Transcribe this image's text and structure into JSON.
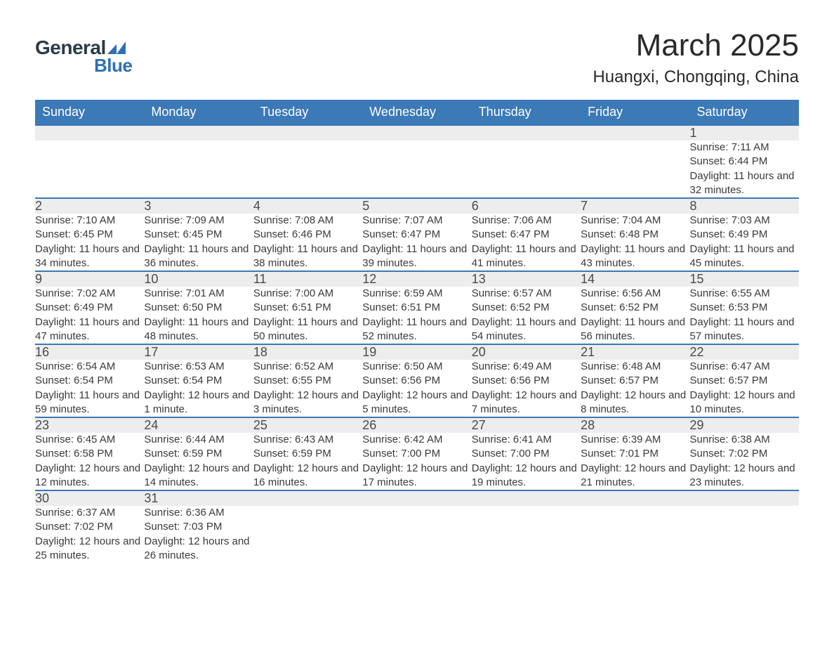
{
  "brand": {
    "word1": "General",
    "word2": "Blue",
    "word1_color": "#2b3a4a",
    "word2_color": "#2f6fb3",
    "flag_color": "#2f6fb3"
  },
  "title": {
    "month": "March 2025",
    "location": "Huangxi, Chongqing, China"
  },
  "colors": {
    "header_bg": "#3b79b7",
    "header_text": "#ffffff",
    "daynum_bg": "#ededed",
    "row_border": "#3b79b7",
    "body_text": "#3a3a3a"
  },
  "weekdays": [
    "Sunday",
    "Monday",
    "Tuesday",
    "Wednesday",
    "Thursday",
    "Friday",
    "Saturday"
  ],
  "weeks": [
    {
      "nums": [
        "",
        "",
        "",
        "",
        "",
        "",
        "1"
      ],
      "cells": [
        "",
        "",
        "",
        "",
        "",
        "",
        "Sunrise: 7:11 AM\nSunset: 6:44 PM\nDaylight: 11 hours and 32 minutes."
      ]
    },
    {
      "nums": [
        "2",
        "3",
        "4",
        "5",
        "6",
        "7",
        "8"
      ],
      "cells": [
        "Sunrise: 7:10 AM\nSunset: 6:45 PM\nDaylight: 11 hours and 34 minutes.",
        "Sunrise: 7:09 AM\nSunset: 6:45 PM\nDaylight: 11 hours and 36 minutes.",
        "Sunrise: 7:08 AM\nSunset: 6:46 PM\nDaylight: 11 hours and 38 minutes.",
        "Sunrise: 7:07 AM\nSunset: 6:47 PM\nDaylight: 11 hours and 39 minutes.",
        "Sunrise: 7:06 AM\nSunset: 6:47 PM\nDaylight: 11 hours and 41 minutes.",
        "Sunrise: 7:04 AM\nSunset: 6:48 PM\nDaylight: 11 hours and 43 minutes.",
        "Sunrise: 7:03 AM\nSunset: 6:49 PM\nDaylight: 11 hours and 45 minutes."
      ]
    },
    {
      "nums": [
        "9",
        "10",
        "11",
        "12",
        "13",
        "14",
        "15"
      ],
      "cells": [
        "Sunrise: 7:02 AM\nSunset: 6:49 PM\nDaylight: 11 hours and 47 minutes.",
        "Sunrise: 7:01 AM\nSunset: 6:50 PM\nDaylight: 11 hours and 48 minutes.",
        "Sunrise: 7:00 AM\nSunset: 6:51 PM\nDaylight: 11 hours and 50 minutes.",
        "Sunrise: 6:59 AM\nSunset: 6:51 PM\nDaylight: 11 hours and 52 minutes.",
        "Sunrise: 6:57 AM\nSunset: 6:52 PM\nDaylight: 11 hours and 54 minutes.",
        "Sunrise: 6:56 AM\nSunset: 6:52 PM\nDaylight: 11 hours and 56 minutes.",
        "Sunrise: 6:55 AM\nSunset: 6:53 PM\nDaylight: 11 hours and 57 minutes."
      ]
    },
    {
      "nums": [
        "16",
        "17",
        "18",
        "19",
        "20",
        "21",
        "22"
      ],
      "cells": [
        "Sunrise: 6:54 AM\nSunset: 6:54 PM\nDaylight: 11 hours and 59 minutes.",
        "Sunrise: 6:53 AM\nSunset: 6:54 PM\nDaylight: 12 hours and 1 minute.",
        "Sunrise: 6:52 AM\nSunset: 6:55 PM\nDaylight: 12 hours and 3 minutes.",
        "Sunrise: 6:50 AM\nSunset: 6:56 PM\nDaylight: 12 hours and 5 minutes.",
        "Sunrise: 6:49 AM\nSunset: 6:56 PM\nDaylight: 12 hours and 7 minutes.",
        "Sunrise: 6:48 AM\nSunset: 6:57 PM\nDaylight: 12 hours and 8 minutes.",
        "Sunrise: 6:47 AM\nSunset: 6:57 PM\nDaylight: 12 hours and 10 minutes."
      ]
    },
    {
      "nums": [
        "23",
        "24",
        "25",
        "26",
        "27",
        "28",
        "29"
      ],
      "cells": [
        "Sunrise: 6:45 AM\nSunset: 6:58 PM\nDaylight: 12 hours and 12 minutes.",
        "Sunrise: 6:44 AM\nSunset: 6:59 PM\nDaylight: 12 hours and 14 minutes.",
        "Sunrise: 6:43 AM\nSunset: 6:59 PM\nDaylight: 12 hours and 16 minutes.",
        "Sunrise: 6:42 AM\nSunset: 7:00 PM\nDaylight: 12 hours and 17 minutes.",
        "Sunrise: 6:41 AM\nSunset: 7:00 PM\nDaylight: 12 hours and 19 minutes.",
        "Sunrise: 6:39 AM\nSunset: 7:01 PM\nDaylight: 12 hours and 21 minutes.",
        "Sunrise: 6:38 AM\nSunset: 7:02 PM\nDaylight: 12 hours and 23 minutes."
      ]
    },
    {
      "nums": [
        "30",
        "31",
        "",
        "",
        "",
        "",
        ""
      ],
      "cells": [
        "Sunrise: 6:37 AM\nSunset: 7:02 PM\nDaylight: 12 hours and 25 minutes.",
        "Sunrise: 6:36 AM\nSunset: 7:03 PM\nDaylight: 12 hours and 26 minutes.",
        "",
        "",
        "",
        "",
        ""
      ]
    }
  ]
}
